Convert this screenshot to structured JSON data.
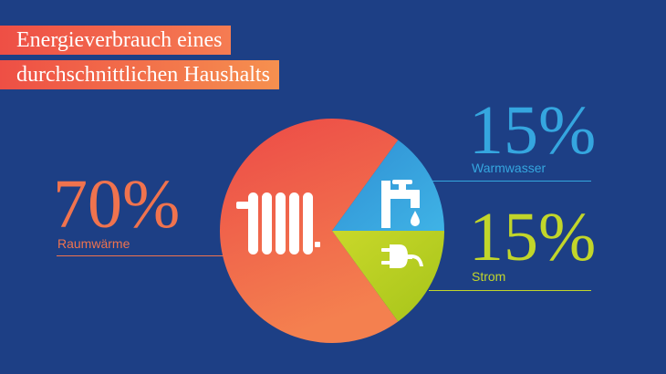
{
  "title_lines": [
    "Energieverbrauch eines",
    "durchschnittlichen Haushalts"
  ],
  "chart_data": {
    "type": "pie",
    "title": "Energieverbrauch eines durchschnittlichen Haushalts",
    "slices": [
      {
        "label": "Raumwärme",
        "value": 70,
        "value_label": "70%",
        "color": "#ee5a45",
        "icon": "radiator-icon"
      },
      {
        "label": "Warmwasser",
        "value": 15,
        "value_label": "15%",
        "color": "#33a1dc",
        "icon": "faucet-icon"
      },
      {
        "label": "Strom",
        "value": 15,
        "value_label": "15%",
        "color": "#b8cf1e",
        "icon": "plug-icon"
      }
    ]
  },
  "colors": {
    "background": "#1d3f85",
    "title_gradient": [
      "#ee4f45",
      "#f6904f"
    ],
    "raumwaerme_text": "#f0734e",
    "warmwasser_text": "#35a6df",
    "strom_text": "#c2d62a"
  }
}
